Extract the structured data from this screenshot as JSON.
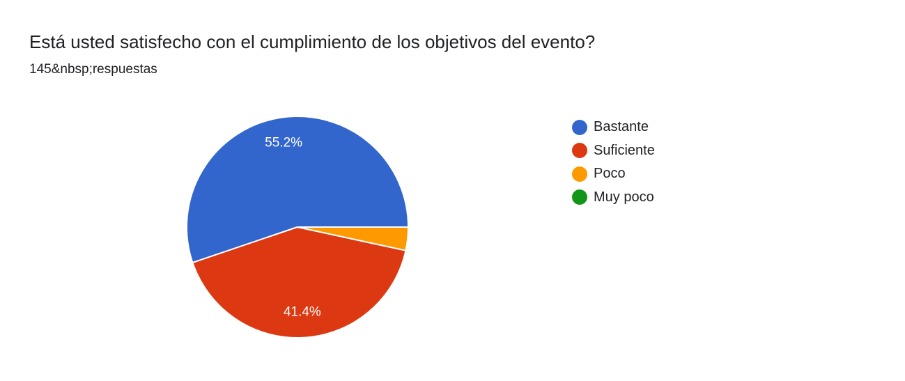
{
  "header": {
    "title": "Está usted satisfecho con el cumplimiento de los objetivos del evento?",
    "subtitle": "145&nbsp;respuestas"
  },
  "chart_data": {
    "type": "pie",
    "title": "Está usted satisfecho con el cumplimiento de los objetivos del evento?",
    "legend_position": "right",
    "start_angle_deg": 0,
    "direction": "counterclockwise",
    "slices": [
      {
        "label": "Bastante",
        "value": 55.2,
        "display": "55.2%",
        "color": "#3366cc"
      },
      {
        "label": "Suficiente",
        "value": 41.4,
        "display": "41.4%",
        "color": "#dc3912"
      },
      {
        "label": "Poco",
        "value": 3.4,
        "display": "",
        "color": "#ff9900"
      },
      {
        "label": "Muy poco",
        "value": 0,
        "display": "",
        "color": "#109618"
      }
    ]
  }
}
